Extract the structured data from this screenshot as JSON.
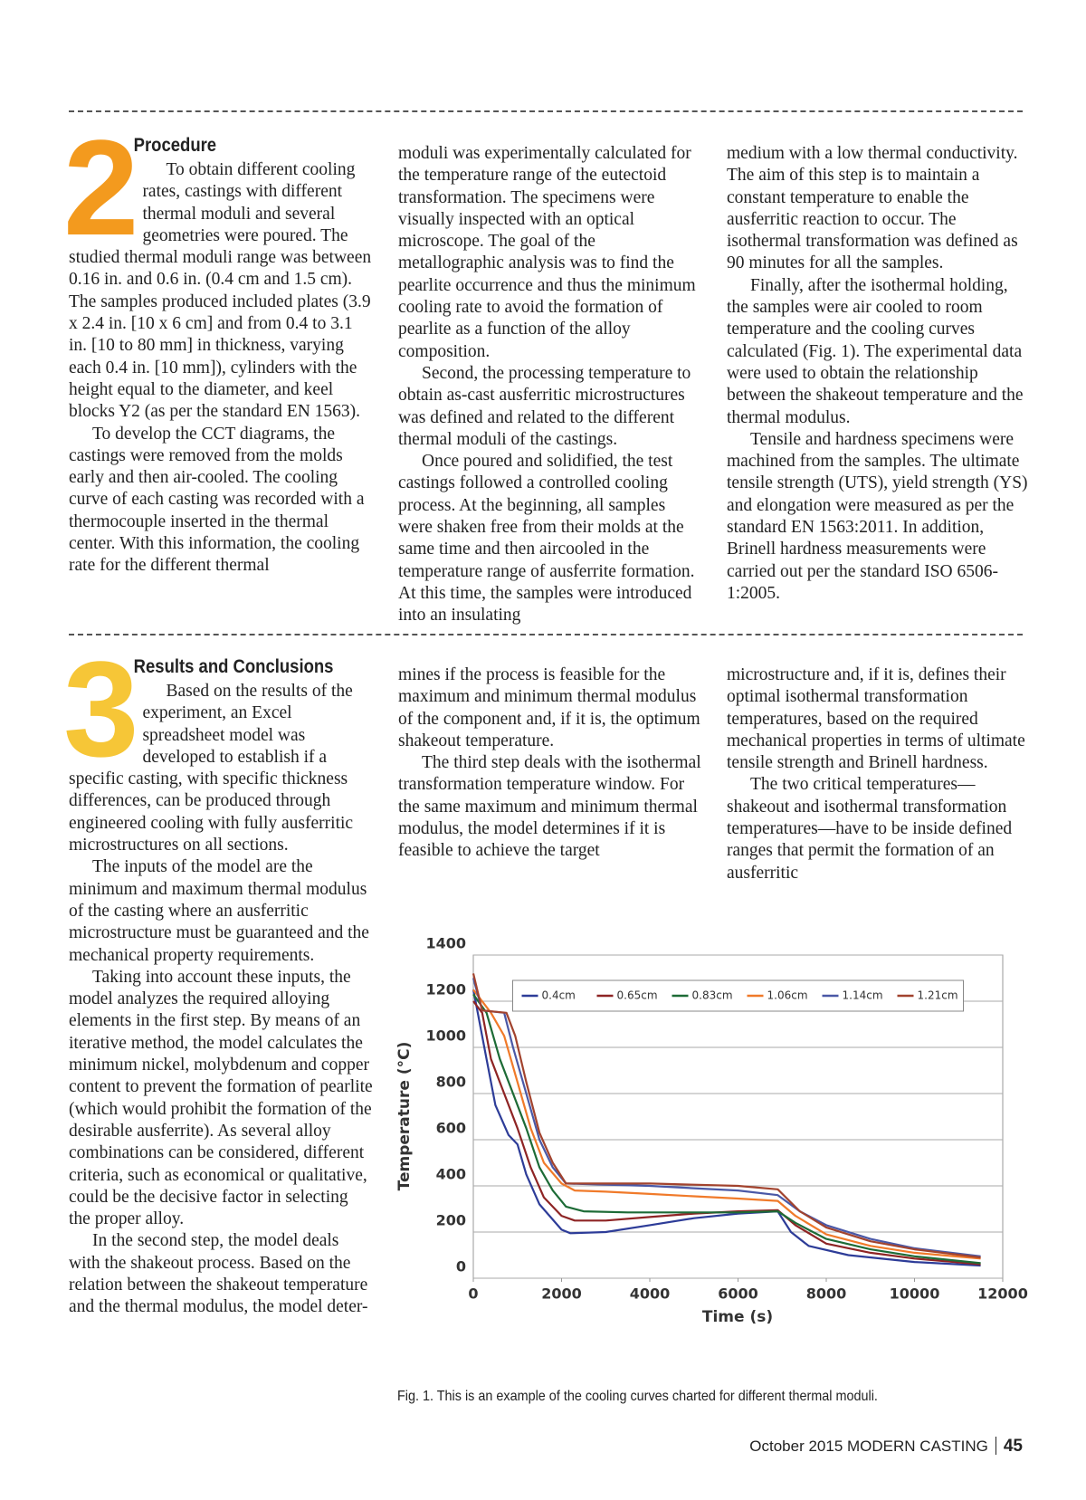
{
  "sections": [
    {
      "number": "2",
      "heading": "Procedure",
      "columns": [
        [
          "To obtain different cooling rates, castings with different thermal moduli and several geometries were poured. The studied thermal moduli range was between 0.16 in. and 0.6 in. (0.4 cm and 1.5 cm). The samples produced included plates (3.9 x 2.4 in. [10 x 6 cm] and from 0.4 to 3.1 in. [10 to 80 mm] in thickness, varying each 0.4 in. [10 mm]), cylinders with the height equal to the diameter, and keel blocks Y2 (as per the standard EN 1563).",
          "To develop the CCT diagrams, the castings were removed from the molds early and then air-cooled. The cooling curve of each casting was recorded with a thermocouple inserted in the thermal center. With this information, the cooling rate for the different thermal"
        ],
        [
          "moduli was experimentally calculated for the temperature range of the eutectoid transformation. The specimens were visually inspected with an optical microscope. The goal of the metallographic analysis was to find the pearlite occurrence and thus the minimum cooling rate to avoid the formation of pearlite as a function of the alloy composition.",
          "Second, the processing temperature to obtain as-cast ausferritic microstructures was defined and related to the different thermal moduli of the castings.",
          "Once poured and solidified, the test castings followed a controlled cooling process. At the beginning, all samples were shaken free from their molds at the same time and then aircooled in the temperature range of ausferrite formation. At this time, the samples were introduced into an insulating"
        ],
        [
          "medium with a low thermal conductivity. The aim of this step is to maintain a constant temperature to enable the ausferritic reaction to occur. The isothermal transformation was defined as 90 minutes for all the samples.",
          "Finally, after the isothermal holding, the samples were air cooled to room temperature and the cooling curves calculated (Fig. 1). The experimental data were used to obtain the relationship between the shakeout temperature and the thermal modulus.",
          "Tensile and hardness specimens were machined from the samples. The ultimate tensile strength (UTS), yield strength (YS) and elongation were measured as per the standard EN 1563:2011. In addition, Brinell hardness measurements were carried out per the standard ISO 6506-1:2005."
        ]
      ]
    },
    {
      "number": "3",
      "heading": "Results and Conclusions",
      "columns": [
        [
          "Based on the results of the experiment, an Excel spreadsheet model was developed to establish if a specific casting, with specific thickness differences, can be produced through engineered cooling with fully ausferritic microstructures on all sections.",
          "The inputs of the model are the minimum and maximum thermal modulus of the casting where an ausferritic microstructure must be guaranteed and the mechanical property requirements.",
          "Taking into account these inputs, the model analyzes the required alloying elements in the first step. By means of an iterative method, the model calculates the minimum nickel, molybdenum and copper content to prevent the formation of pearlite (which would prohibit the formation of the desirable ausferrite). As several alloy combinations can be considered, different criteria, such as economical or qualitative, could be the decisive factor in selecting the proper alloy.",
          "In the second step, the model deals with the shakeout process. Based on the relation between the shakeout temperature and the thermal modulus, the model deter-"
        ],
        [
          "mines if the process is feasible for the maximum and minimum thermal modulus of the component and, if it is, the optimum shakeout temperature.",
          "The third step deals with the isothermal transformation temperature window. For the same maximum and minimum thermal modulus, the model determines if it is feasible to achieve the target"
        ],
        [
          "microstructure and, if it is, defines their optimal isothermal transformation temperatures, based on the required mechanical properties in terms of ultimate tensile strength and Brinell hardness.",
          "The two critical temperatures—shakeout and isothermal transformation temperatures—have to be inside defined ranges that permit the formation of an ausferritic"
        ]
      ]
    }
  ],
  "chart_data": {
    "type": "line",
    "x_label": "Time (s)",
    "y_label": "Temperature (°C)",
    "xlim": [
      0,
      12000
    ],
    "xticks": [
      0,
      2000,
      4000,
      6000,
      8000,
      10000,
      12000
    ],
    "ylim": [
      0,
      1400
    ],
    "yticks": [
      0,
      200,
      400,
      600,
      800,
      1000,
      1200,
      1400
    ],
    "grid": true,
    "legend": "top",
    "series": [
      {
        "name": "0.4cm",
        "color": "#2d3c98",
        "x": [
          0,
          100,
          300,
          500,
          800,
          1000,
          1200,
          1500,
          2000,
          2200,
          3000,
          4000,
          5000,
          6000,
          6900,
          7200,
          7600,
          8500,
          10000,
          11500
        ],
        "values": [
          1250,
          1150,
          950,
          750,
          620,
          580,
          450,
          320,
          210,
          195,
          200,
          230,
          260,
          280,
          290,
          200,
          140,
          100,
          70,
          55
        ]
      },
      {
        "name": "0.65cm",
        "color": "#8e2424",
        "x": [
          0,
          200,
          400,
          700,
          1000,
          1300,
          1600,
          2000,
          2300,
          3000,
          4000,
          5000,
          6000,
          6900,
          7300,
          8000,
          9000,
          10000,
          11500
        ],
        "values": [
          1200,
          1150,
          950,
          800,
          650,
          480,
          350,
          270,
          250,
          250,
          265,
          280,
          290,
          295,
          230,
          150,
          110,
          85,
          60
        ]
      },
      {
        "name": "0.83cm",
        "color": "#1d6b36",
        "x": [
          0,
          300,
          600,
          900,
          1200,
          1500,
          1800,
          2100,
          2500,
          3500,
          5000,
          6000,
          6900,
          7300,
          8000,
          9000,
          10000,
          11500
        ],
        "values": [
          1230,
          1150,
          950,
          800,
          650,
          480,
          380,
          310,
          290,
          285,
          285,
          285,
          290,
          240,
          170,
          125,
          95,
          65
        ]
      },
      {
        "name": "1.06cm",
        "color": "#f07a2a",
        "x": [
          0,
          400,
          700,
          1000,
          1300,
          1600,
          2000,
          2300,
          3000,
          4000,
          5000,
          6000,
          6900,
          7300,
          8000,
          9000,
          10000,
          11500
        ],
        "values": [
          1250,
          1150,
          1050,
          850,
          650,
          500,
          410,
          380,
          375,
          365,
          355,
          345,
          335,
          270,
          190,
          140,
          110,
          85
        ]
      },
      {
        "name": "1.14cm",
        "color": "#4a58a6",
        "x": [
          0,
          200,
          700,
          900,
          1200,
          1500,
          1800,
          2100,
          3000,
          4000,
          5000,
          6000,
          6900,
          7400,
          8000,
          9000,
          10000,
          11500
        ],
        "values": [
          1300,
          1160,
          1150,
          1000,
          800,
          600,
          480,
          410,
          405,
          400,
          390,
          380,
          360,
          290,
          230,
          170,
          130,
          95
        ]
      },
      {
        "name": "1.21cm",
        "color": "#a2432e",
        "x": [
          0,
          200,
          750,
          950,
          1200,
          1500,
          1800,
          2100,
          3000,
          4000,
          5000,
          6000,
          6900,
          7400,
          8000,
          9000,
          10000,
          11500
        ],
        "values": [
          1320,
          1160,
          1150,
          1050,
          850,
          630,
          500,
          410,
          410,
          410,
          405,
          400,
          385,
          290,
          220,
          160,
          125,
          90
        ]
      }
    ]
  },
  "caption": "Fig. 1. This is an example of the cooling curves charted for different thermal moduli.",
  "footer": {
    "date": "October 2015",
    "magazine": "MODERN CASTING",
    "page": "45"
  }
}
